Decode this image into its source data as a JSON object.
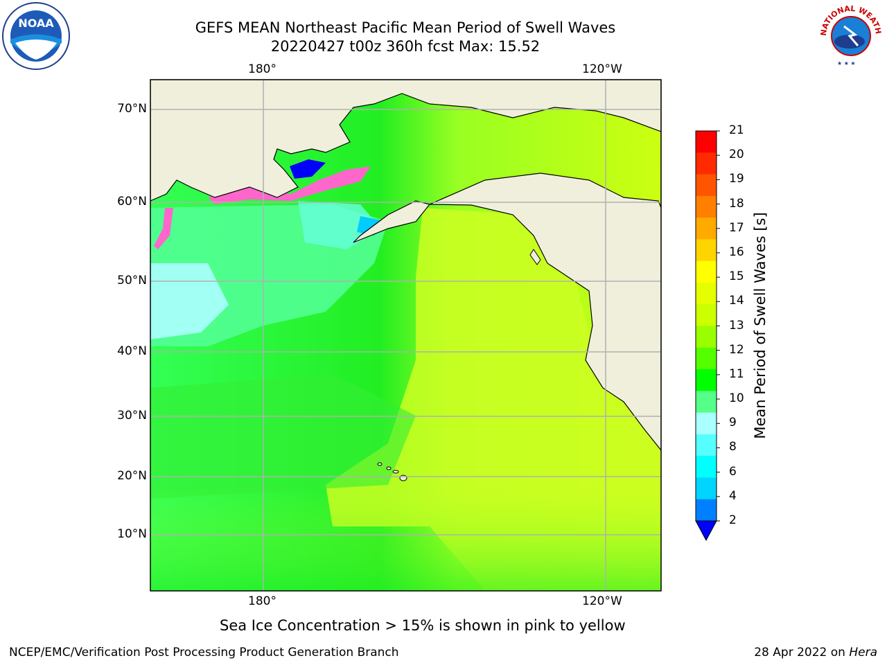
{
  "title": {
    "line1": "GEFS MEAN Northeast Pacific Mean Period of Swell Waves",
    "line2": "20220427 t00z 360h fcst   Max: 15.52"
  },
  "map": {
    "top_lon_labels": [
      "180°",
      "120°W"
    ],
    "bottom_lon_labels": [
      "180°",
      "120°W"
    ],
    "lat_labels": [
      "70°N",
      "60°N",
      "50°N",
      "40°N",
      "30°N",
      "20°N",
      "10°N"
    ]
  },
  "colorbar": {
    "label": "Mean Period of Swell Waves [s]",
    "ticks": [
      "21",
      "20",
      "19",
      "18",
      "17",
      "16",
      "15",
      "14",
      "13",
      "12",
      "11",
      "10",
      "9",
      "8",
      "6",
      "4",
      "2"
    ],
    "colors": [
      "#ff0000",
      "#ff2a00",
      "#ff5500",
      "#ff7f00",
      "#ffaa00",
      "#ffd400",
      "#ffff00",
      "#e5ff00",
      "#ccff00",
      "#99ff00",
      "#55ff00",
      "#00ff00",
      "#55ff88",
      "#aaffff",
      "#55ffff",
      "#00ffff",
      "#00d4ff",
      "#0080ff",
      "#0000ff"
    ]
  },
  "logos": {
    "left": "NOAA",
    "right_text": "NATIONAL WEATHER SERVICE"
  },
  "footnote": "Sea Ice Concentration > 15% is shown in pink to yellow",
  "footer": {
    "left": "NCEP/EMC/Verification Post Processing Product Generation Branch",
    "right_prefix": "28 Apr 2022 on ",
    "right_host": "Hera"
  }
}
